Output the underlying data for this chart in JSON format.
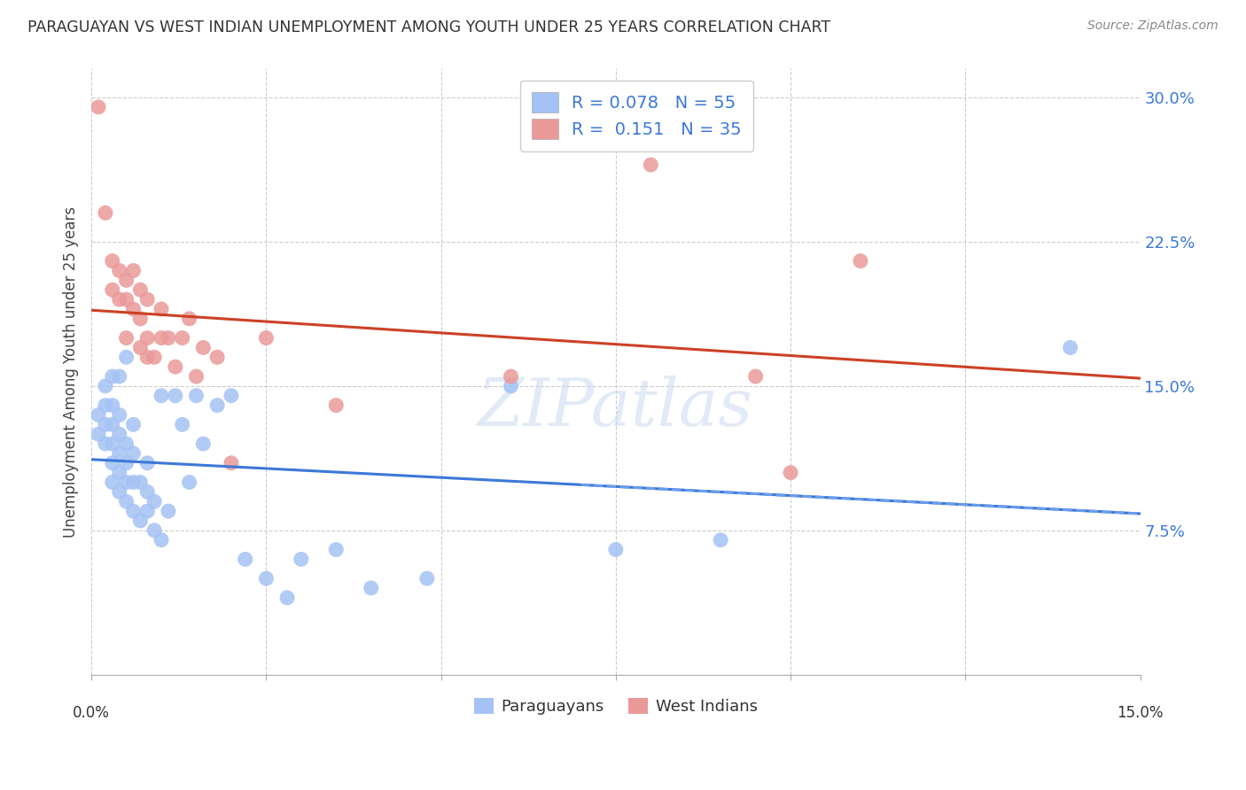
{
  "title": "PARAGUAYAN VS WEST INDIAN UNEMPLOYMENT AMONG YOUTH UNDER 25 YEARS CORRELATION CHART",
  "source": "Source: ZipAtlas.com",
  "ylabel": "Unemployment Among Youth under 25 years",
  "yticks": [
    "7.5%",
    "15.0%",
    "22.5%",
    "30.0%"
  ],
  "ytick_vals": [
    0.075,
    0.15,
    0.225,
    0.3
  ],
  "xlim": [
    0.0,
    0.15
  ],
  "ylim": [
    0.0,
    0.315
  ],
  "blue_color": "#a4c2f4",
  "pink_color": "#ea9999",
  "blue_line_color": "#3c78d8",
  "pink_line_color": "#cc4125",
  "blue_line_dash_color": "#6d9eeb",
  "paraguayan_x": [
    0.001,
    0.001,
    0.002,
    0.002,
    0.002,
    0.002,
    0.003,
    0.003,
    0.003,
    0.003,
    0.003,
    0.003,
    0.004,
    0.004,
    0.004,
    0.004,
    0.004,
    0.004,
    0.005,
    0.005,
    0.005,
    0.005,
    0.005,
    0.006,
    0.006,
    0.006,
    0.006,
    0.007,
    0.007,
    0.008,
    0.008,
    0.008,
    0.009,
    0.009,
    0.01,
    0.01,
    0.011,
    0.012,
    0.013,
    0.014,
    0.015,
    0.016,
    0.018,
    0.02,
    0.022,
    0.025,
    0.028,
    0.03,
    0.035,
    0.04,
    0.048,
    0.06,
    0.075,
    0.09,
    0.14
  ],
  "paraguayan_y": [
    0.125,
    0.135,
    0.12,
    0.13,
    0.14,
    0.15,
    0.1,
    0.11,
    0.12,
    0.13,
    0.14,
    0.155,
    0.095,
    0.105,
    0.115,
    0.125,
    0.135,
    0.155,
    0.09,
    0.1,
    0.11,
    0.12,
    0.165,
    0.085,
    0.1,
    0.115,
    0.13,
    0.08,
    0.1,
    0.085,
    0.095,
    0.11,
    0.075,
    0.09,
    0.07,
    0.145,
    0.085,
    0.145,
    0.13,
    0.1,
    0.145,
    0.12,
    0.14,
    0.145,
    0.06,
    0.05,
    0.04,
    0.06,
    0.065,
    0.045,
    0.05,
    0.15,
    0.065,
    0.07,
    0.17
  ],
  "west_indian_x": [
    0.001,
    0.002,
    0.003,
    0.003,
    0.004,
    0.004,
    0.005,
    0.005,
    0.005,
    0.006,
    0.006,
    0.007,
    0.007,
    0.007,
    0.008,
    0.008,
    0.008,
    0.009,
    0.01,
    0.01,
    0.011,
    0.012,
    0.013,
    0.014,
    0.015,
    0.016,
    0.018,
    0.02,
    0.025,
    0.035,
    0.06,
    0.08,
    0.095,
    0.1,
    0.11
  ],
  "west_indian_y": [
    0.295,
    0.24,
    0.2,
    0.215,
    0.195,
    0.21,
    0.175,
    0.195,
    0.205,
    0.19,
    0.21,
    0.17,
    0.185,
    0.2,
    0.165,
    0.175,
    0.195,
    0.165,
    0.175,
    0.19,
    0.175,
    0.16,
    0.175,
    0.185,
    0.155,
    0.17,
    0.165,
    0.11,
    0.175,
    0.14,
    0.155,
    0.265,
    0.155,
    0.105,
    0.215
  ],
  "watermark": "ZIPatlas",
  "background_color": "#ffffff"
}
